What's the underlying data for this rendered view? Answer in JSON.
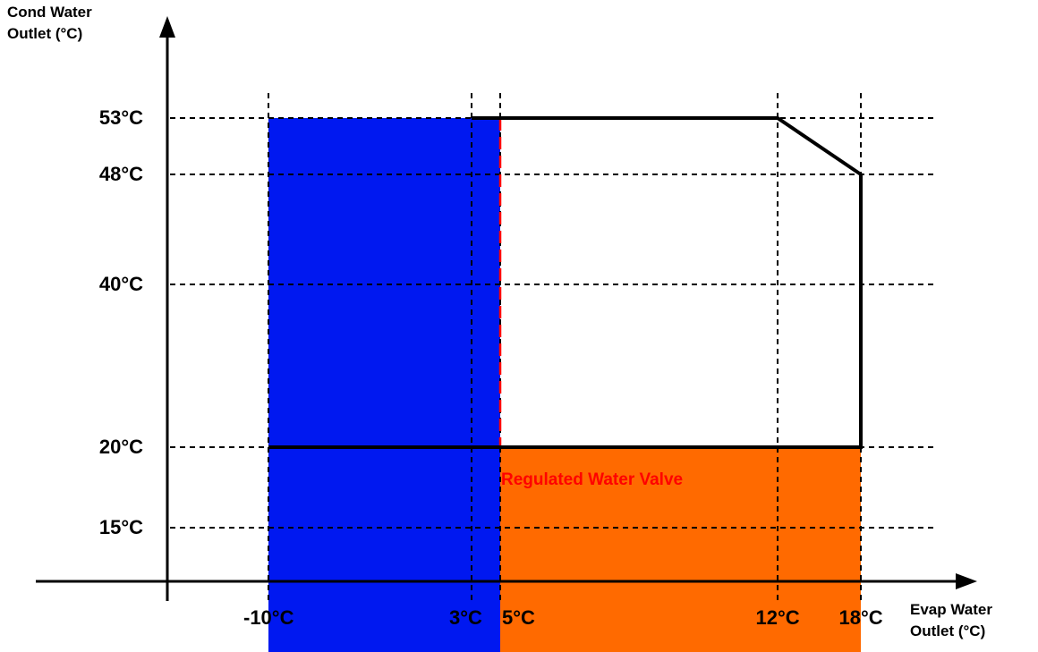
{
  "chart_data": {
    "type": "area",
    "ylabel_line1": "Cond Water",
    "ylabel_line2": "Outlet (°C)",
    "xlabel_line1": "Evap Water",
    "xlabel_line2": "Outlet (°C)",
    "x_ticks": [
      {
        "value": -10,
        "label": "-10°C"
      },
      {
        "value": 3,
        "label": "3°C"
      },
      {
        "value": 5,
        "label": "5°C"
      },
      {
        "value": 12,
        "label": "12°C"
      },
      {
        "value": 18,
        "label": "18°C"
      }
    ],
    "y_ticks": [
      {
        "value": 15,
        "label": "15°C"
      },
      {
        "value": 20,
        "label": "20°C"
      },
      {
        "value": 40,
        "label": "40°C"
      },
      {
        "value": 48,
        "label": "48°C"
      },
      {
        "value": 53,
        "label": "53°C"
      }
    ],
    "envelope": [
      [
        3,
        53
      ],
      [
        12,
        53
      ],
      [
        18,
        48
      ],
      [
        18,
        20
      ],
      [
        -10,
        20
      ]
    ],
    "regions": [
      {
        "x": [
          -10,
          5
        ],
        "y": [
          5.6,
          53
        ],
        "color": "#0018f0"
      },
      {
        "x": [
          5,
          18
        ],
        "y": [
          5.6,
          20
        ],
        "color": "#ff6a00"
      }
    ],
    "regulated_valve_boundary": [
      [
        5,
        53
      ],
      [
        5,
        20
      ],
      [
        18,
        20
      ]
    ],
    "annotation": {
      "text": "Regulated Water Valve",
      "x": 5,
      "y": 17.8,
      "color": "#ff0000"
    },
    "colors": {
      "cold_region": "#0018f0",
      "warm_region": "#ff6a00",
      "valve_line": "#ff0000"
    }
  }
}
